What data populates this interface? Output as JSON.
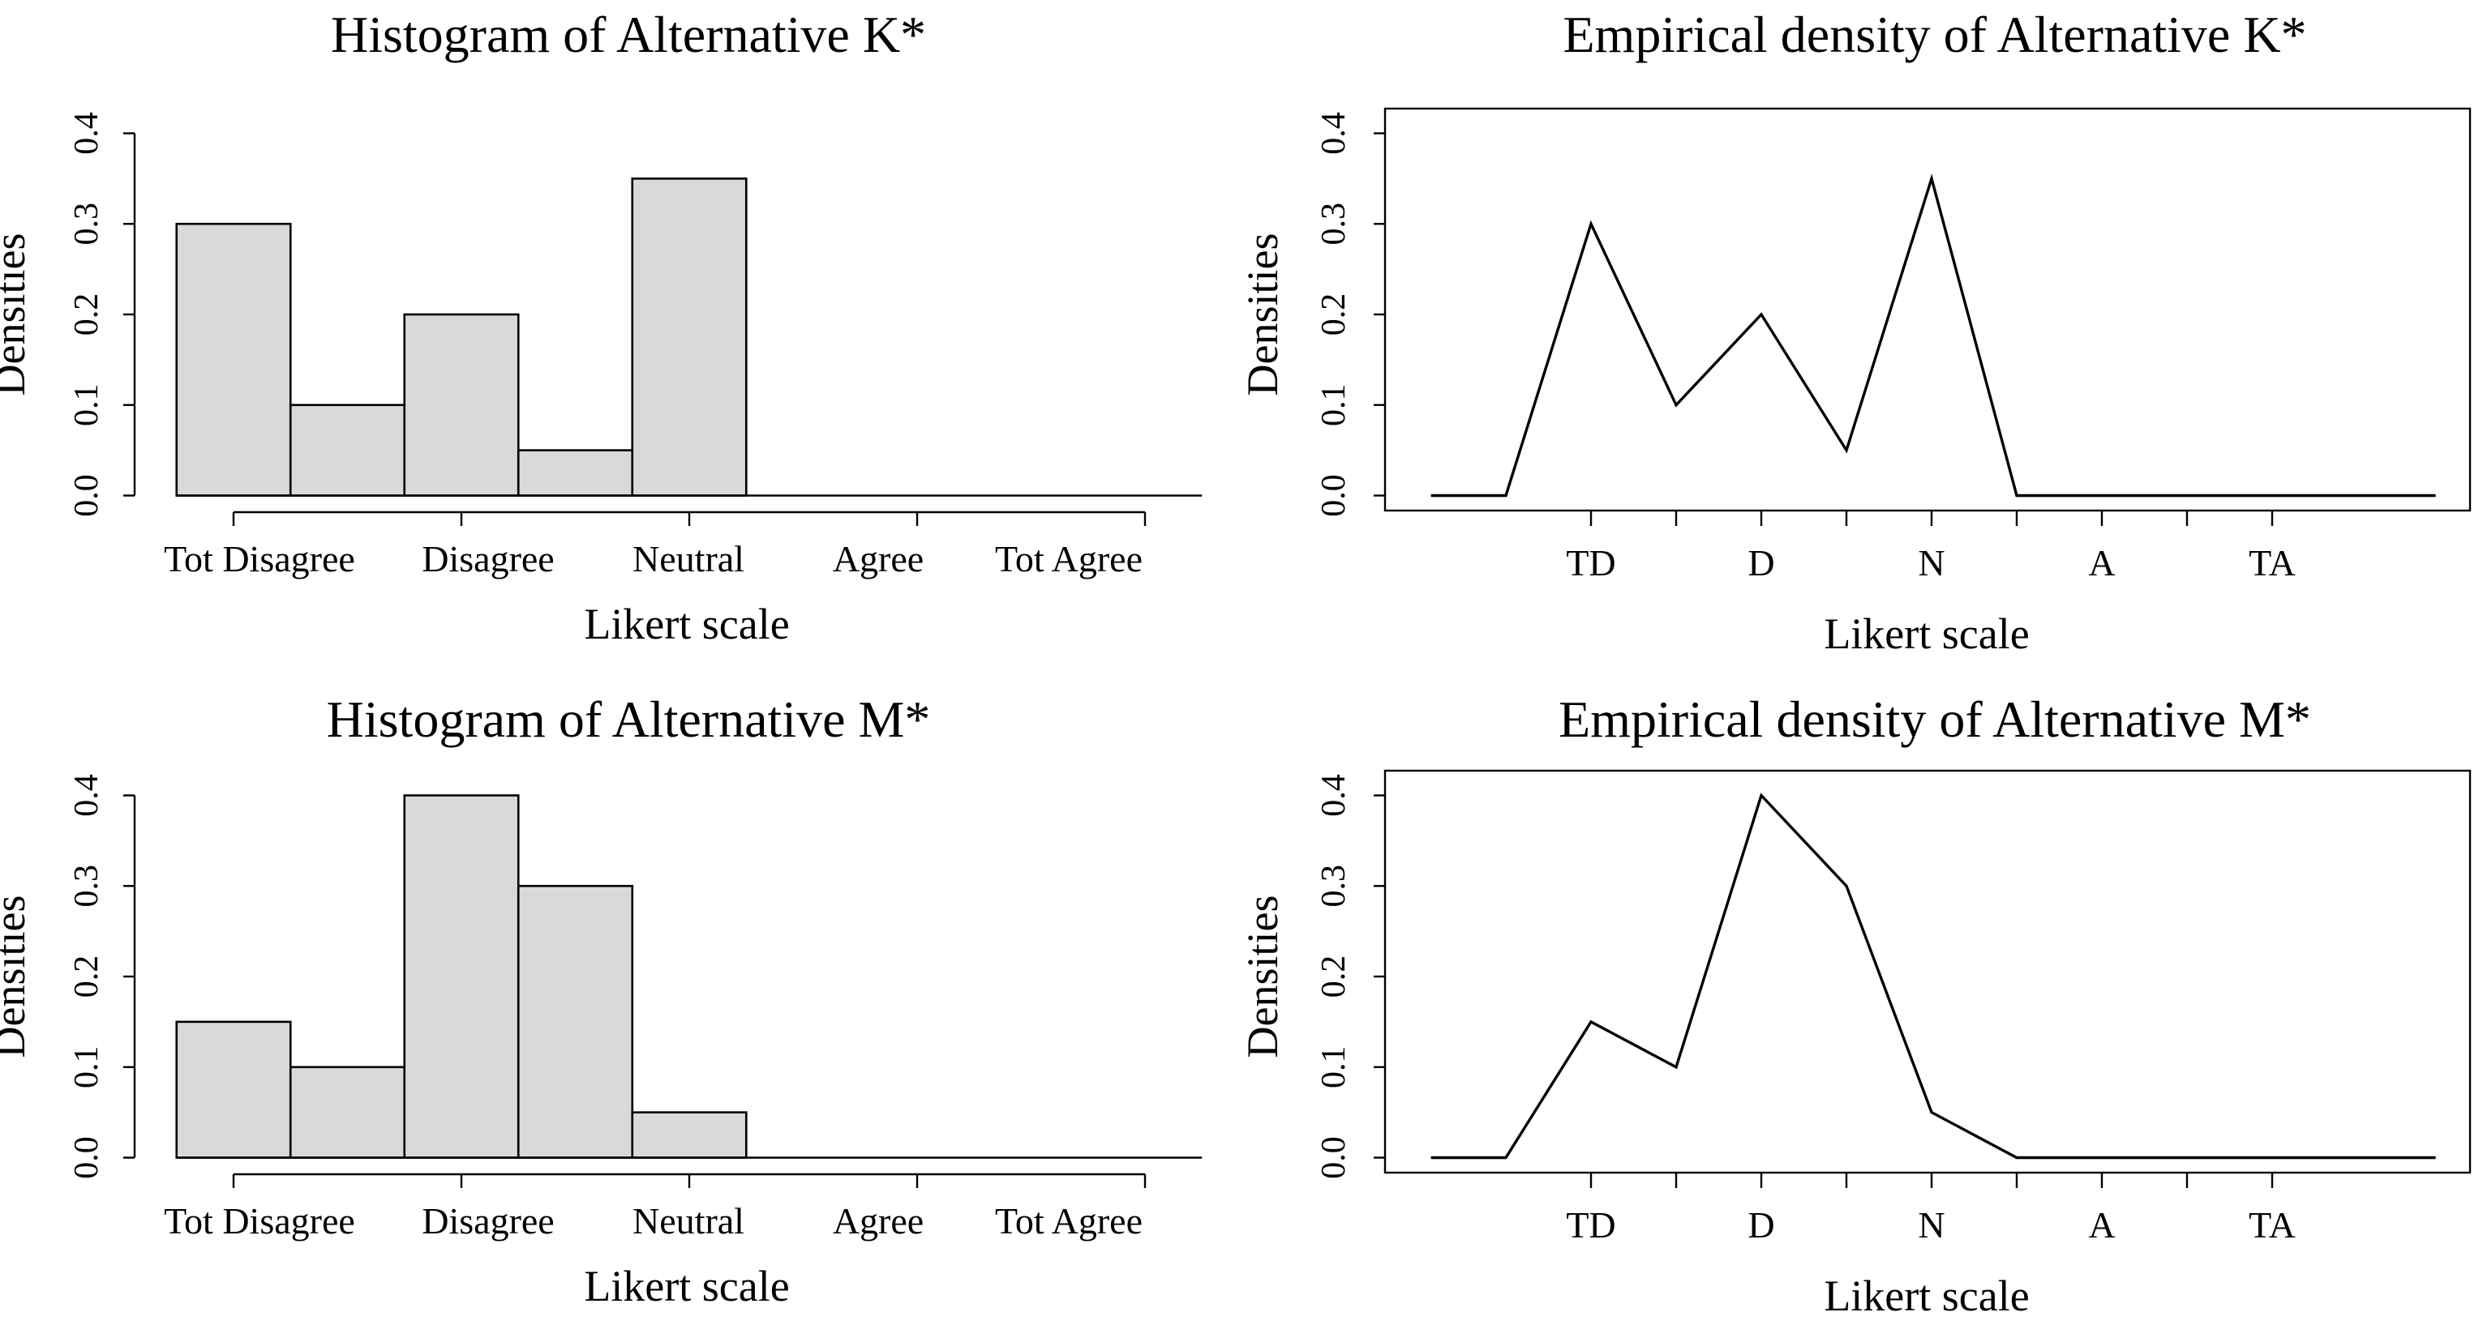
{
  "figure": {
    "background": "#ffffff",
    "description_labels": {
      "likert_categories": [
        "Tot Disagree",
        "Disagree",
        "Neutral",
        "Agree",
        "Tot Agree"
      ],
      "likert_abbreviations": [
        "TD",
        "D",
        "N",
        "A",
        "TA"
      ]
    }
  },
  "colors": {
    "ink": "#000000",
    "bar_fill": "#d9d9d9",
    "background": "#ffffff"
  },
  "chart_data": [
    {
      "id": "histogram-k",
      "type": "bar",
      "row": 0,
      "col": 0,
      "title": "Histogram of Alternative K*",
      "xlabel": "Likert scale",
      "ylabel": "Densities",
      "categories": [
        "Tot Disagree",
        "Disagree",
        "Neutral",
        "Agree",
        "Tot Agree"
      ],
      "bin_centers": [
        1,
        1.5,
        2,
        2.5,
        3
      ],
      "bin_width": 0.5,
      "values": [
        0.3,
        0.1,
        0.2,
        0.05,
        0.35
      ],
      "ylim": [
        0,
        0.4
      ],
      "ytick_values": [
        0,
        0.1,
        0.2,
        0.3,
        0.4
      ],
      "ytick_labels": [
        "0.0",
        "0.1",
        "0.2",
        "0.3",
        "0.4"
      ],
      "xticks_at": [
        1,
        2,
        3,
        4,
        5
      ],
      "baseline_extent": [
        0.75,
        5.25
      ],
      "grid": "off",
      "legend": "none"
    },
    {
      "id": "density-k",
      "type": "line",
      "row": 0,
      "col": 1,
      "title": "Empirical density of Alternative K*",
      "xlabel": "Likert scale",
      "ylabel": "Densities",
      "x": [
        0.06,
        0.5,
        1,
        1.5,
        2,
        2.5,
        3,
        3.5,
        5.96
      ],
      "y": [
        0,
        0,
        0.3,
        0.1,
        0.2,
        0.05,
        0.35,
        0,
        0
      ],
      "ylim": [
        0,
        0.4
      ],
      "ytick_values": [
        0,
        0.1,
        0.2,
        0.3,
        0.4
      ],
      "ytick_labels": [
        "0.0",
        "0.1",
        "0.2",
        "0.3",
        "0.4"
      ],
      "xticks_at": [
        1,
        1.5,
        2,
        2.5,
        3,
        3.5,
        4,
        4.5,
        5
      ],
      "xtick_labels": [
        "TD",
        "",
        "D",
        "",
        "N",
        "",
        "A",
        "",
        "TA"
      ],
      "grid": "off",
      "legend": "none"
    },
    {
      "id": "histogram-m",
      "type": "bar",
      "row": 1,
      "col": 0,
      "title": "Histogram of Alternative M*",
      "xlabel": "Likert scale",
      "ylabel": "Densities",
      "categories": [
        "Tot Disagree",
        "Disagree",
        "Neutral",
        "Agree",
        "Tot Agree"
      ],
      "bin_centers": [
        1,
        1.5,
        2,
        2.5,
        3
      ],
      "bin_width": 0.5,
      "values": [
        0.15,
        0.1,
        0.4,
        0.3,
        0.05
      ],
      "ylim": [
        0,
        0.4
      ],
      "ytick_values": [
        0,
        0.1,
        0.2,
        0.3,
        0.4
      ],
      "ytick_labels": [
        "0.0",
        "0.1",
        "0.2",
        "0.3",
        "0.4"
      ],
      "xticks_at": [
        1,
        2,
        3,
        4,
        5
      ],
      "baseline_extent": [
        0.75,
        5.25
      ],
      "grid": "off",
      "legend": "none"
    },
    {
      "id": "density-m",
      "type": "line",
      "row": 1,
      "col": 1,
      "title": "Empirical density of Alternative M*",
      "xlabel": "Likert scale",
      "ylabel": "Densities",
      "x": [
        0.06,
        0.5,
        1,
        1.5,
        2,
        2.5,
        3,
        3.5,
        5.96
      ],
      "y": [
        0,
        0,
        0.15,
        0.1,
        0.4,
        0.3,
        0.05,
        0,
        0
      ],
      "ylim": [
        0,
        0.4
      ],
      "ytick_values": [
        0,
        0.1,
        0.2,
        0.3,
        0.4
      ],
      "ytick_labels": [
        "0.0",
        "0.1",
        "0.2",
        "0.3",
        "0.4"
      ],
      "xticks_at": [
        1,
        1.5,
        2,
        2.5,
        3,
        3.5,
        4,
        4.5,
        5
      ],
      "xtick_labels": [
        "TD",
        "",
        "D",
        "",
        "N",
        "",
        "A",
        "",
        "TA"
      ],
      "grid": "off",
      "legend": "none"
    }
  ]
}
